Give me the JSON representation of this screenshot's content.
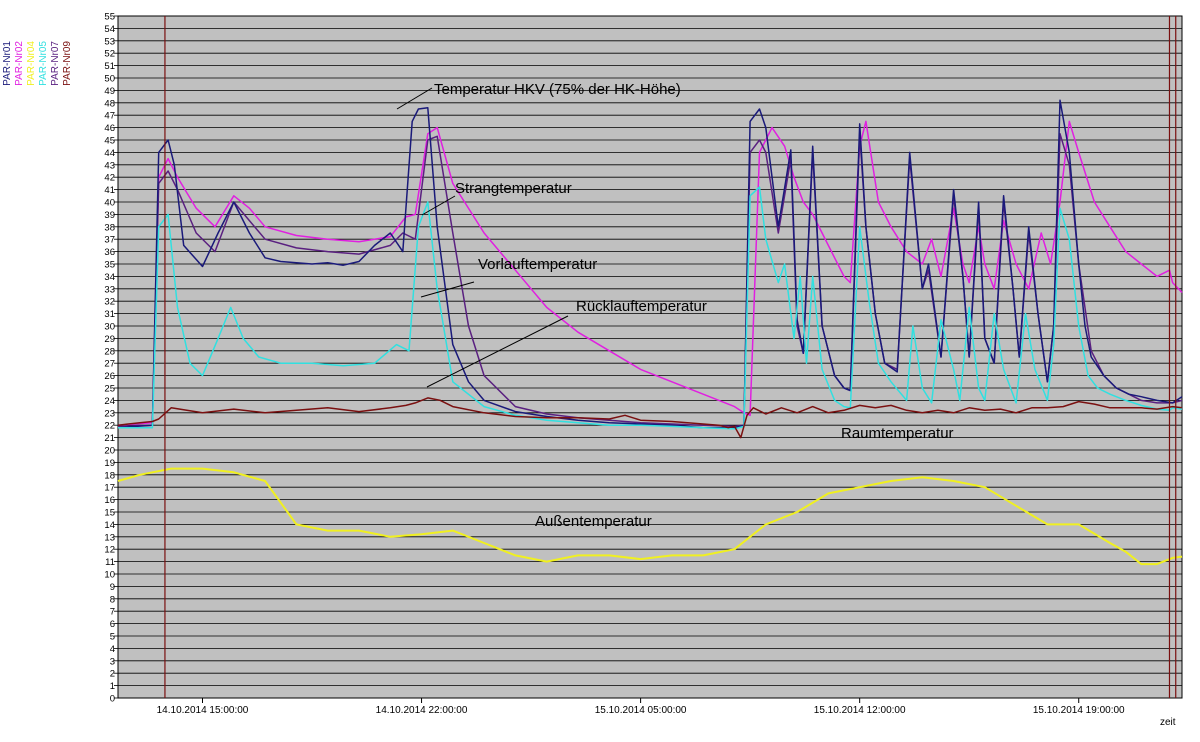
{
  "chart_data": {
    "type": "line",
    "xlabel": "zeit",
    "ylabel": "",
    "ylim": [
      0,
      55
    ],
    "ytick_step": 1,
    "x_ticks": [
      "14.10.2014 15:00:00",
      "14.10.2014 22:00:00",
      "15.10.2014 05:00:00",
      "15.10.2014 12:00:00",
      "15.10.2014 19:00:00"
    ],
    "xlim_hours": [
      12.3,
      46.3
    ],
    "x_tick_hours": [
      15,
      22,
      29,
      36,
      43
    ],
    "background": "#c0c0c0",
    "grid": "horizontal",
    "legend_position": "top-left, vertical text",
    "series": [
      {
        "name": "PAR-Nr01",
        "color": "#1a1a7a",
        "x": [
          12.3,
          13.4,
          13.6,
          13.9,
          14.1,
          14.4,
          15.0,
          15.5,
          16.0,
          16.5,
          17.0,
          17.5,
          18.0,
          18.5,
          19.0,
          19.5,
          20.0,
          20.5,
          21.0,
          21.4,
          21.7,
          21.9,
          22.2,
          22.5,
          23.0,
          23.5,
          24.0,
          25.0,
          26.0,
          27.0,
          28.0,
          29.0,
          30.0,
          31.0,
          32.0,
          32.3,
          32.5,
          32.8,
          33.0,
          33.4,
          33.8,
          34.0,
          34.2,
          34.5,
          34.8,
          35.2,
          35.5,
          35.7,
          36.0,
          36.2,
          36.5,
          36.8,
          37.2,
          37.6,
          38.0,
          38.2,
          38.6,
          39.0,
          39.3,
          39.5,
          39.8,
          40.0,
          40.3,
          40.6,
          40.9,
          41.1,
          41.4,
          41.7,
          42.0,
          42.2,
          42.4,
          42.7,
          43.0,
          43.2,
          43.4,
          43.8,
          44.2,
          44.6,
          45.0,
          45.5,
          46.0,
          46.3
        ],
        "y": [
          21.8,
          22.0,
          44.0,
          45.0,
          43.0,
          36.5,
          34.8,
          37.5,
          40.0,
          37.5,
          35.5,
          35.2,
          35.1,
          35.0,
          35.1,
          34.9,
          35.2,
          36.5,
          37.5,
          36.0,
          46.5,
          47.5,
          47.6,
          38.0,
          28.5,
          25.5,
          24.0,
          23.1,
          22.7,
          22.4,
          22.2,
          22.1,
          22.0,
          21.8,
          21.8,
          22.0,
          46.5,
          47.5,
          46.0,
          38.0,
          44.2,
          30.5,
          27.8,
          44.5,
          30.0,
          26.0,
          25.0,
          24.8,
          46.3,
          38.0,
          31.0,
          27.0,
          26.3,
          44.0,
          33.0,
          35.0,
          27.5,
          41.0,
          34.0,
          27.5,
          40.0,
          29.0,
          27.0,
          40.5,
          33.0,
          27.5,
          38.0,
          31.0,
          25.5,
          30.0,
          48.2,
          44.0,
          35.0,
          30.0,
          27.5,
          26.0,
          25.0,
          24.5,
          24.3,
          24.0,
          23.8,
          24.3
        ]
      },
      {
        "name": "PAR-Nr02",
        "color": "#e020e0",
        "x": [
          12.3,
          13.4,
          13.6,
          13.9,
          14.2,
          14.8,
          15.4,
          16.0,
          16.5,
          17.0,
          18.0,
          19.0,
          20.0,
          21.0,
          21.5,
          21.8,
          22.2,
          22.5,
          23.0,
          24.0,
          25.0,
          26.0,
          27.0,
          28.0,
          29.0,
          30.0,
          31.0,
          32.0,
          32.3,
          32.5,
          32.8,
          33.2,
          33.6,
          33.9,
          34.2,
          34.5,
          34.8,
          35.2,
          35.5,
          35.7,
          36.0,
          36.2,
          36.6,
          37.0,
          37.5,
          38.0,
          38.3,
          38.6,
          39.0,
          39.3,
          39.5,
          39.8,
          40.0,
          40.3,
          40.6,
          41.0,
          41.4,
          41.8,
          42.1,
          42.4,
          42.7,
          43.0,
          43.5,
          44.0,
          44.5,
          45.0,
          45.5,
          45.9,
          46.0,
          46.3
        ],
        "y": [
          22.0,
          22.2,
          42.0,
          43.5,
          42.0,
          39.5,
          38.0,
          40.5,
          39.5,
          38.0,
          37.3,
          37.0,
          36.8,
          37.2,
          38.8,
          39.0,
          45.5,
          46.0,
          41.5,
          37.5,
          34.5,
          31.5,
          29.5,
          28.0,
          26.5,
          25.5,
          24.5,
          23.5,
          23.0,
          22.8,
          44.0,
          46.0,
          44.5,
          42.0,
          40.0,
          39.0,
          37.5,
          35.5,
          34.0,
          33.5,
          44.5,
          46.5,
          40.0,
          38.0,
          36.0,
          35.0,
          37.0,
          34.0,
          39.5,
          35.0,
          33.5,
          38.0,
          35.0,
          33.0,
          38.5,
          35.0,
          33.0,
          37.5,
          35.0,
          40.0,
          46.5,
          44.0,
          40.0,
          38.0,
          36.0,
          35.0,
          34.0,
          34.5,
          33.5,
          32.7
        ]
      },
      {
        "name": "PAR-Nr04",
        "color": "#f0f020",
        "x": [
          12.3,
          13.0,
          14.0,
          15.0,
          16.0,
          17.0,
          18.0,
          19.0,
          19.5,
          20.0,
          21.0,
          22.0,
          23.0,
          24.0,
          25.0,
          26.0,
          27.0,
          28.0,
          29.0,
          30.0,
          31.0,
          32.0,
          33.0,
          34.0,
          35.0,
          36.0,
          37.0,
          38.0,
          39.0,
          40.0,
          41.0,
          42.0,
          43.0,
          44.0,
          44.5,
          45.0,
          45.5,
          46.0,
          46.3
        ],
        "y": [
          17.5,
          18.0,
          18.5,
          18.5,
          18.2,
          17.5,
          14.0,
          13.5,
          13.5,
          13.5,
          13.0,
          13.2,
          13.5,
          12.5,
          11.5,
          11.0,
          11.5,
          11.5,
          11.2,
          11.5,
          11.5,
          12.0,
          14.0,
          15.0,
          16.5,
          17.0,
          17.5,
          17.8,
          17.5,
          17.0,
          15.5,
          14.0,
          14.0,
          12.5,
          11.8,
          10.8,
          10.8,
          11.3,
          11.4
        ]
      },
      {
        "name": "PAR-Nr05",
        "color": "#30e0e0",
        "x": [
          12.3,
          13.4,
          13.6,
          13.9,
          14.2,
          14.6,
          15.0,
          15.5,
          15.9,
          16.3,
          16.8,
          17.5,
          18.5,
          19.5,
          20.5,
          21.2,
          21.6,
          21.9,
          22.2,
          22.5,
          23.0,
          24.0,
          25.0,
          26.0,
          27.0,
          28.0,
          29.0,
          30.0,
          31.0,
          32.0,
          32.3,
          32.5,
          32.8,
          33.0,
          33.4,
          33.6,
          33.9,
          34.1,
          34.3,
          34.5,
          34.8,
          35.2,
          35.5,
          35.7,
          36.0,
          36.3,
          36.6,
          37.0,
          37.5,
          37.7,
          38.0,
          38.3,
          38.6,
          39.0,
          39.2,
          39.5,
          39.8,
          40.0,
          40.3,
          40.6,
          41.0,
          41.3,
          41.6,
          42.0,
          42.2,
          42.4,
          42.7,
          43.0,
          43.3,
          43.6,
          44.0,
          44.5,
          45.0,
          45.5,
          45.9,
          46.0,
          46.3
        ],
        "y": [
          21.8,
          21.8,
          38.0,
          39.0,
          31.5,
          27.0,
          26.0,
          29.0,
          31.5,
          29.0,
          27.5,
          27.0,
          27.0,
          26.8,
          27.0,
          28.5,
          28.0,
          38.0,
          40.0,
          33.0,
          25.5,
          23.5,
          22.8,
          22.4,
          22.2,
          22.0,
          22.0,
          21.9,
          21.8,
          21.7,
          21.9,
          40.5,
          41.2,
          37.0,
          33.5,
          35.0,
          29.0,
          34.0,
          27.0,
          34.0,
          26.5,
          24.0,
          23.5,
          23.4,
          38.0,
          32.0,
          27.0,
          25.5,
          24.0,
          30.0,
          25.0,
          23.8,
          30.5,
          26.5,
          24.0,
          31.5,
          25.0,
          24.0,
          31.0,
          26.5,
          23.8,
          31.0,
          26.5,
          24.0,
          28.5,
          39.5,
          37.0,
          30.0,
          26.0,
          25.0,
          24.5,
          24.0,
          23.6,
          23.3,
          23.2,
          23.4,
          23.3
        ]
      },
      {
        "name": "PAR-Nr07",
        "color": "#5a2080",
        "x": [
          12.3,
          13.4,
          13.6,
          13.9,
          14.2,
          14.8,
          15.4,
          16.0,
          16.5,
          17.0,
          18.0,
          19.0,
          20.0,
          21.0,
          21.4,
          21.8,
          22.2,
          22.5,
          23.0,
          23.5,
          24.0,
          25.0,
          26.0,
          27.0,
          28.0,
          29.0,
          30.0,
          31.0,
          32.0,
          32.3,
          32.5,
          32.8,
          33.0,
          33.4,
          33.8,
          34.0,
          34.2,
          34.5,
          34.8,
          35.2,
          35.5,
          35.7,
          36.0,
          36.2,
          36.5,
          36.8,
          37.2,
          37.6,
          38.0,
          38.2,
          38.6,
          39.0,
          39.3,
          39.5,
          39.8,
          40.0,
          40.3,
          40.6,
          40.9,
          41.1,
          41.4,
          41.7,
          42.0,
          42.2,
          42.4,
          42.7,
          43.0,
          43.4,
          43.8,
          44.2,
          44.6,
          45.0,
          45.5,
          46.0,
          46.3
        ],
        "y": [
          21.9,
          22.0,
          41.5,
          42.5,
          41.0,
          37.5,
          36.0,
          40.0,
          38.5,
          37.0,
          36.3,
          36.0,
          35.8,
          36.5,
          37.5,
          37.0,
          45.0,
          45.3,
          37.5,
          30.0,
          26.0,
          23.5,
          22.9,
          22.6,
          22.4,
          22.2,
          22.1,
          22.0,
          21.9,
          22.0,
          44.0,
          45.0,
          44.0,
          37.5,
          43.5,
          30.0,
          27.8,
          44.0,
          30.0,
          26.0,
          25.0,
          24.8,
          45.5,
          38.0,
          31.0,
          27.0,
          26.5,
          43.5,
          33.0,
          34.5,
          27.5,
          40.5,
          34.0,
          27.5,
          39.5,
          29.0,
          27.0,
          40.0,
          33.0,
          27.5,
          37.5,
          31.0,
          25.5,
          30.0,
          45.5,
          43.0,
          35.0,
          28.0,
          26.0,
          25.0,
          24.5,
          24.0,
          23.8,
          23.8,
          24.0
        ]
      },
      {
        "name": "PAR-Nr09",
        "color": "#7a1010",
        "x": [
          12.3,
          13.0,
          13.4,
          13.6,
          14.0,
          14.5,
          15.0,
          16.0,
          17.0,
          18.0,
          19.0,
          20.0,
          21.0,
          21.5,
          21.8,
          22.2,
          22.6,
          23.0,
          24.0,
          25.0,
          26.0,
          27.0,
          28.0,
          28.5,
          29.0,
          30.0,
          31.0,
          31.5,
          31.8,
          32.0,
          32.2,
          32.4,
          32.6,
          33.0,
          33.5,
          34.0,
          34.5,
          35.0,
          35.5,
          36.0,
          36.5,
          37.0,
          37.5,
          38.0,
          38.5,
          39.0,
          39.5,
          40.0,
          40.5,
          41.0,
          41.5,
          42.0,
          42.5,
          43.0,
          43.5,
          44.0,
          44.5,
          45.0,
          45.5,
          46.0,
          46.3
        ],
        "y": [
          22.0,
          22.2,
          22.3,
          22.5,
          23.4,
          23.2,
          23.0,
          23.3,
          23.0,
          23.2,
          23.4,
          23.1,
          23.4,
          23.6,
          23.8,
          24.2,
          24.0,
          23.5,
          23.0,
          22.7,
          22.6,
          22.6,
          22.5,
          22.8,
          22.4,
          22.3,
          22.1,
          22.0,
          21.8,
          21.9,
          21.0,
          22.8,
          23.4,
          22.9,
          23.4,
          23.0,
          23.5,
          23.0,
          23.2,
          23.6,
          23.4,
          23.6,
          23.2,
          23.0,
          23.2,
          23.0,
          23.4,
          23.2,
          23.3,
          23.0,
          23.4,
          23.4,
          23.5,
          23.9,
          23.7,
          23.4,
          23.4,
          23.4,
          23.3,
          23.5,
          23.4
        ]
      }
    ],
    "vertical_markers": [
      {
        "x": 13.8,
        "color": "#7a1010"
      },
      {
        "x": 45.9,
        "color": "#7a1010"
      },
      {
        "x": 46.1,
        "color": "#7a1010"
      }
    ],
    "annotations": [
      {
        "text": "Temperatur HKV (75% der HK-Höhe)",
        "data_x": 21.9,
        "data_y": 47.5
      },
      {
        "text": "Strangtemperatur",
        "data_x": 22.5,
        "data_y": 39.5
      },
      {
        "text": "Vorlauftemperatur",
        "data_x": 22.4,
        "data_y": 32.5
      },
      {
        "text": "Rücklauftemperatur",
        "data_x": 22.5,
        "data_y": 25.0
      },
      {
        "text": "Raumtemperatur",
        "data_x": null,
        "data_y": null
      },
      {
        "text": "Außentemperatur",
        "data_x": null,
        "data_y": null
      }
    ]
  }
}
